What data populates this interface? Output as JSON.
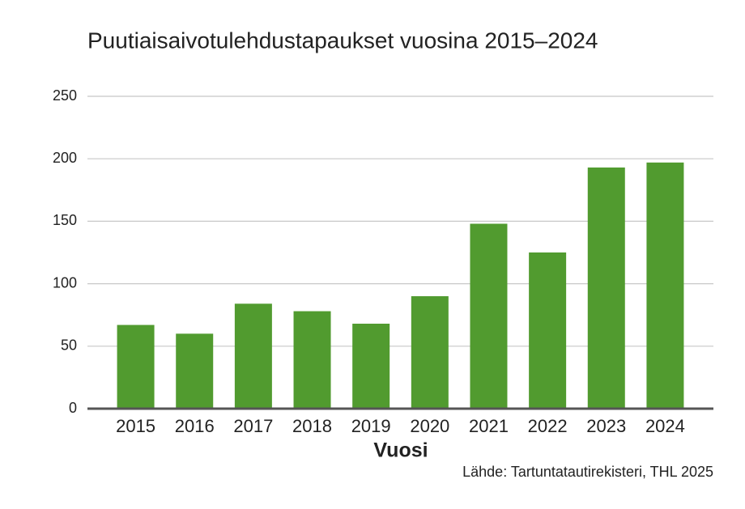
{
  "chart_data": {
    "type": "bar",
    "title": "Puutiaisaivotulehdustapaukset vuosina 2015–2024",
    "x_label": "Vuosi",
    "source": "Lähde: Tartuntatautirekisteri, THL 2025",
    "categories": [
      "2015",
      "2016",
      "2017",
      "2018",
      "2019",
      "2020",
      "2021",
      "2022",
      "2023",
      "2024"
    ],
    "values": [
      67,
      60,
      84,
      78,
      68,
      90,
      148,
      125,
      193,
      197
    ],
    "color": "#519b2f",
    "ylim": [
      0,
      250
    ],
    "yticks": [
      0,
      50,
      100,
      150,
      200,
      250
    ],
    "grid": true
  }
}
